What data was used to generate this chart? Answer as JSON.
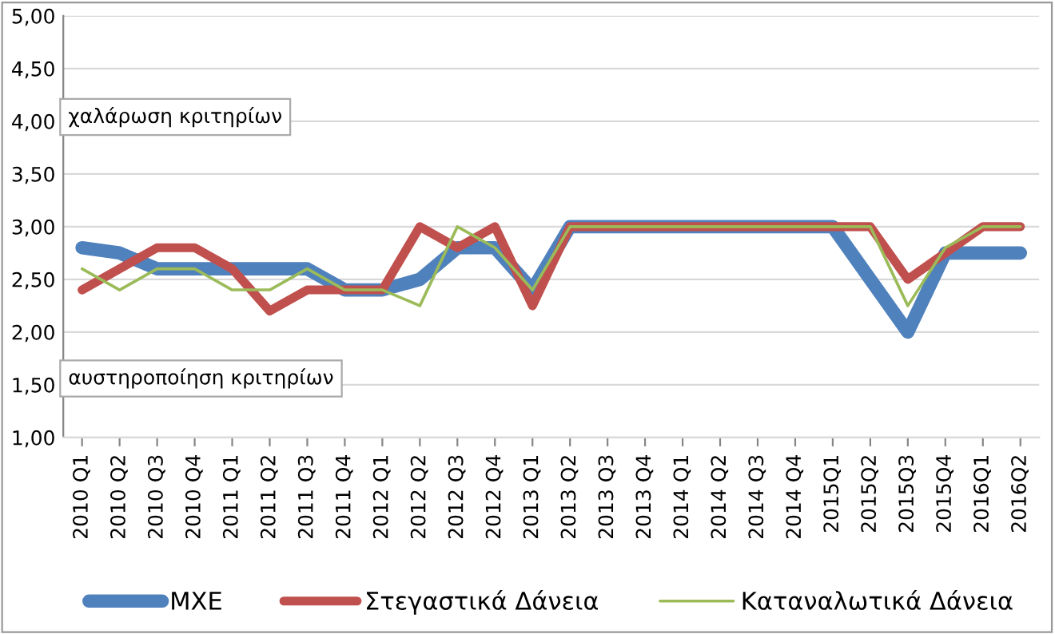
{
  "chart_data": {
    "type": "line",
    "categories": [
      "2010 Q1",
      "2010 Q2",
      "2010 Q3",
      "2010 Q4",
      "2011 Q1",
      "2011 Q2",
      "2011 Q3",
      "2011 Q4",
      "2012 Q1",
      "2012 Q2",
      "2012 Q3",
      "2012 Q4",
      "2013 Q1",
      "2013 Q2",
      "2013 Q3",
      "2013 Q4",
      "2014 Q1",
      "2014 Q2",
      "2014 Q3",
      "2014 Q4",
      "2015Q1",
      "2015Q2",
      "2015Q3",
      "2015Q4",
      "2016Q1",
      "2016Q2"
    ],
    "series": [
      {
        "name": "ΜΧΕ",
        "color": "#4f81bd",
        "values": [
          2.8,
          2.75,
          2.6,
          2.6,
          2.6,
          2.6,
          2.6,
          2.4,
          2.4,
          2.5,
          2.8,
          2.8,
          2.4,
          3.0,
          3.0,
          3.0,
          3.0,
          3.0,
          3.0,
          3.0,
          3.0,
          2.5,
          2.0,
          2.75,
          2.75,
          2.75
        ]
      },
      {
        "name": "Στεγαστικά Δάνεια",
        "color": "#c0504d",
        "values": [
          2.4,
          2.6,
          2.8,
          2.8,
          2.6,
          2.2,
          2.4,
          2.4,
          2.4,
          3.0,
          2.8,
          3.0,
          2.25,
          3.0,
          3.0,
          3.0,
          3.0,
          3.0,
          3.0,
          3.0,
          3.0,
          3.0,
          2.5,
          2.75,
          3.0,
          3.0
        ]
      },
      {
        "name": "Καταναλωτικά Δάνεια",
        "color": "#9bbb59",
        "values": [
          2.6,
          2.4,
          2.6,
          2.6,
          2.4,
          2.4,
          2.6,
          2.4,
          2.4,
          2.25,
          3.0,
          2.8,
          2.4,
          3.0,
          3.0,
          3.0,
          3.0,
          3.0,
          3.0,
          3.0,
          3.0,
          3.0,
          2.25,
          2.8,
          3.0,
          3.0
        ]
      }
    ],
    "ylim": [
      1.0,
      5.0
    ],
    "yticks": [
      {
        "value": 1.0,
        "label": "1,00"
      },
      {
        "value": 1.5,
        "label": "1,50"
      },
      {
        "value": 2.0,
        "label": "2,00"
      },
      {
        "value": 2.5,
        "label": "2,50"
      },
      {
        "value": 3.0,
        "label": "3,00"
      },
      {
        "value": 3.5,
        "label": "3,50"
      },
      {
        "value": 4.0,
        "label": "4,00"
      },
      {
        "value": 4.5,
        "label": "4,50"
      },
      {
        "value": 5.0,
        "label": "5,00"
      }
    ],
    "grid": "y",
    "legend": "bottom",
    "marker": "none",
    "line_style": "solid",
    "annotations": [
      "χαλάρωση κριτηρίων",
      "αυστηροποίηση κριτηρίων"
    ]
  }
}
